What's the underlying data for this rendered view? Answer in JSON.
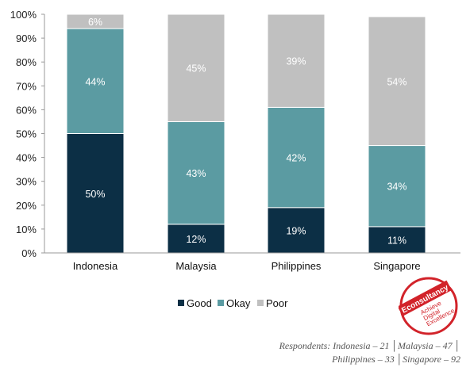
{
  "chart_data": {
    "type": "bar",
    "stacked": true,
    "categories": [
      "Indonesia",
      "Malaysia",
      "Philippines",
      "Singapore"
    ],
    "series": [
      {
        "name": "Good",
        "values": [
          50,
          12,
          19,
          11
        ],
        "labels": [
          "50%",
          "12%",
          "19%",
          "11%"
        ]
      },
      {
        "name": "Okay",
        "values": [
          44,
          43,
          42,
          34
        ],
        "labels": [
          "44%",
          "43%",
          "42%",
          "34%"
        ]
      },
      {
        "name": "Poor",
        "values": [
          6,
          45,
          39,
          54
        ],
        "labels": [
          "6%",
          "45%",
          "39%",
          "54%"
        ]
      }
    ],
    "ylim": [
      0,
      100
    ],
    "yticks": [
      "0%",
      "10%",
      "20%",
      "30%",
      "40%",
      "50%",
      "60%",
      "70%",
      "80%",
      "90%",
      "100%"
    ],
    "grid": false,
    "legend": "bottom",
    "colors": {
      "Good": "#0c2f45",
      "Okay": "#5b9ba2",
      "Poor": "#c0c0c0"
    }
  },
  "footnote": {
    "line1": "Respondents: Indonesia – 21 │Malaysia – 47 │",
    "line2": "Philippines – 33 │Singapore – 92"
  },
  "logo": {
    "brand": "Econsultancy",
    "tagline": [
      "Achieve",
      "Digital",
      "Excellence"
    ],
    "color": "#d2232a"
  }
}
